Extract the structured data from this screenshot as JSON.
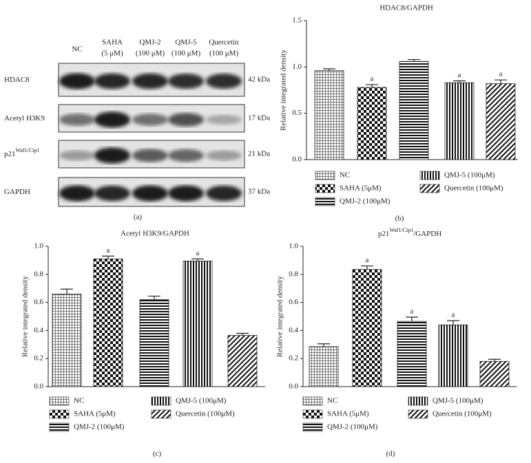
{
  "blot": {
    "lanes": [
      {
        "name": "NC"
      },
      {
        "name": "SAHA",
        "dose": "(5 μM)"
      },
      {
        "name": "QMJ-2",
        "dose": "(100 μM)"
      },
      {
        "name": "QMJ-5",
        "dose": "(100 μM)"
      },
      {
        "name": "Quercetin",
        "dose": "(100 μM)"
      }
    ],
    "rows": [
      {
        "label": "HDAC8",
        "size": "42 kDa"
      },
      {
        "label": "Acetyl H3K9",
        "size": "17 kDa"
      },
      {
        "label": "p21",
        "sup": "Waf1/Cip1",
        "size": "21 kDa"
      },
      {
        "label": "GAPDH",
        "size": "37 kDa"
      }
    ],
    "panel_label": "(a)"
  },
  "chart_data": [
    {
      "type": "bar",
      "title": "HDAC8/GAPDH",
      "y_label": "Relative integrated density",
      "panel_label": "(b)",
      "categories": [
        "NC",
        "SAHA (5μM)",
        "QMJ-2 (100μM)",
        "QMJ-5 (100μM)",
        "Quercetin (100μM)"
      ],
      "values": [
        0.96,
        0.78,
        1.06,
        0.83,
        0.82
      ],
      "errors": [
        0.02,
        0.03,
        0.02,
        0.02,
        0.04
      ],
      "annotations": [
        null,
        "a",
        null,
        "a",
        "a"
      ],
      "patterns": [
        "grid",
        "checker",
        "horizontal",
        "vertical",
        "diagonal"
      ],
      "ylim": [
        0,
        1.5
      ],
      "yticks": [
        {
          "value": 0,
          "label": "0.0"
        },
        0.5,
        {
          "value": 1,
          "label": "1.0"
        },
        1.5
      ]
    },
    {
      "type": "bar",
      "title": "Acetyl H3K9/GAPDH",
      "y_label": "Relative integrated density",
      "panel_label": "(c)",
      "categories": [
        "NC",
        "SAHA (5μM)",
        "QMJ-2 (100μM)",
        "QMJ-5 (100μM)",
        "Quercetin (100μM)"
      ],
      "values": [
        0.66,
        0.91,
        0.62,
        0.895,
        0.365
      ],
      "errors": [
        0.035,
        0.02,
        0.025,
        0.015,
        0.015
      ],
      "annotations": [
        null,
        "a",
        null,
        "a",
        null
      ],
      "patterns": [
        "grid",
        "checker",
        "horizontal",
        "vertical",
        "diagonal"
      ],
      "ylim": [
        0,
        1
      ],
      "yticks": [
        {
          "value": 0,
          "label": "0.0"
        },
        0.2,
        0.4,
        0.6,
        0.8,
        {
          "value": 1,
          "label": "1.0"
        }
      ]
    },
    {
      "type": "bar",
      "title": {
        "base": "p21",
        "sup": "Waf1/Cip1",
        "rest": "/GAPDH"
      },
      "y_label": "Relative integrated density",
      "panel_label": "(d)",
      "categories": [
        "NC",
        "SAHA (5μM)",
        "QMJ-2 (100μM)",
        "QMJ-5 (100μM)",
        "Quercetin (100μM)"
      ],
      "values": [
        0.285,
        0.835,
        0.465,
        0.44,
        0.18
      ],
      "errors": [
        0.02,
        0.025,
        0.03,
        0.03,
        0.015
      ],
      "annotations": [
        null,
        "a",
        "a",
        "a",
        null
      ],
      "patterns": [
        "grid",
        "checker",
        "horizontal",
        "vertical",
        "diagonal"
      ],
      "ylim": [
        0,
        1
      ],
      "yticks": [
        {
          "value": 0,
          "label": "0.0"
        },
        0.2,
        0.4,
        0.6,
        0.8,
        {
          "value": 1,
          "label": "1.0"
        }
      ]
    }
  ]
}
